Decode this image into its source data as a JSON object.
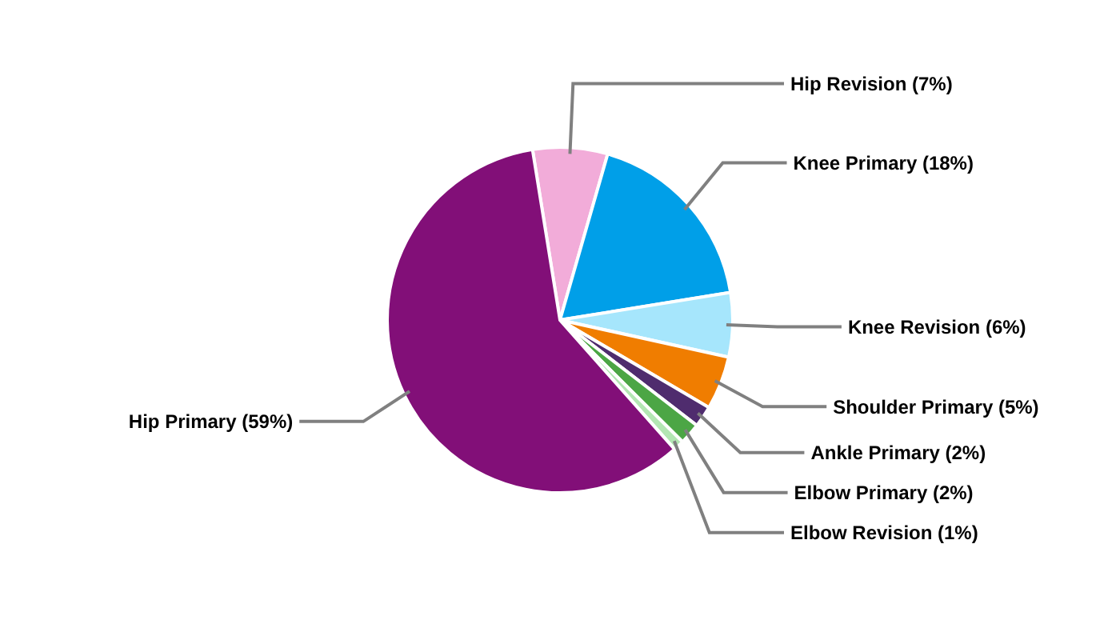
{
  "chart_data": {
    "type": "pie",
    "categories": [
      "Hip Revision",
      "Knee Primary",
      "Knee Revision",
      "Shoulder Primary",
      "Ankle Primary",
      "Elbow Primary",
      "Elbow Revision",
      "Hip Primary"
    ],
    "values": [
      7,
      18,
      6,
      5,
      2,
      2,
      1,
      59
    ],
    "value_labels": [
      "(7%)",
      "(18%)",
      "(6%)",
      "(5%)",
      "(2%)",
      "(2%)",
      "(1%)",
      "(59%)"
    ],
    "colors": [
      "#f2acd9",
      "#009fe8",
      "#a6e6fc",
      "#f07d00",
      "#4f2c6e",
      "#4ca645",
      "#b3e6b3",
      "#820f78"
    ],
    "legend": false
  }
}
